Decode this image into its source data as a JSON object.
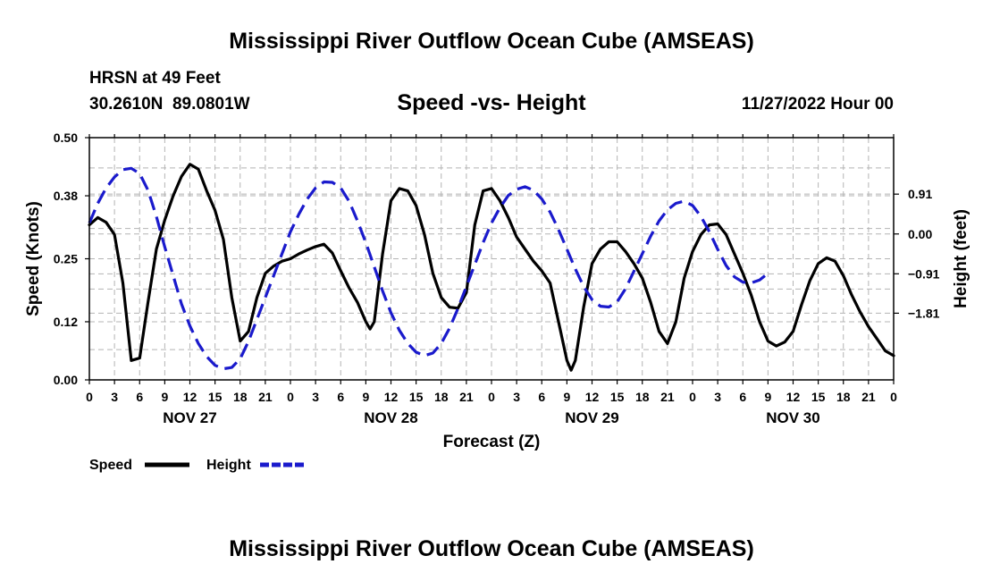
{
  "header": {
    "title": "Mississippi River Outflow Ocean Cube (AMSEAS)",
    "station": "HRSN at 49 Feet",
    "coords": "30.2610N  89.0801W",
    "plot_title": "Speed -vs- Height",
    "datetime": "11/27/2022 Hour 00"
  },
  "footer": {
    "title": "Mississippi River Outflow Ocean Cube (AMSEAS)"
  },
  "colors": {
    "speed": "#000000",
    "height": "#1a1acc",
    "grid": "#b4b4b4"
  },
  "chart_data": {
    "type": "line",
    "title": "Speed -vs- Height",
    "xlabel": "Forecast (Z)",
    "ylabel": "Speed (Knots)",
    "y2label": "Height (feet)",
    "xlim": [
      0,
      96
    ],
    "ylim": [
      0,
      0.5
    ],
    "y2lim": [
      -3.333,
      2.2
    ],
    "grid": true,
    "legend_position": "bottom-left",
    "x_tick_labels": [
      "0",
      "3",
      "6",
      "9",
      "12",
      "15",
      "18",
      "21",
      "0",
      "3",
      "6",
      "9",
      "12",
      "15",
      "18",
      "21",
      "0",
      "3",
      "6",
      "9",
      "12",
      "15",
      "18",
      "21",
      "0",
      "3",
      "6",
      "9",
      "12",
      "15",
      "18",
      "21",
      "0"
    ],
    "day_labels": [
      {
        "label": "NOV 27",
        "at_hour": 12
      },
      {
        "label": "NOV 28",
        "at_hour": 36
      },
      {
        "label": "NOV 29",
        "at_hour": 60
      },
      {
        "label": "NOV 30",
        "at_hour": 84
      }
    ],
    "y_ticks": [
      "0.00",
      "0.12",
      "0.25",
      "0.38",
      "0.50"
    ],
    "y2_ticks": [
      "0.91",
      "0.00",
      "−0.91",
      "−1.81"
    ],
    "y2_tick_values": [
      0.91,
      0.0,
      -0.91,
      -1.81
    ],
    "series": [
      {
        "name": "Speed",
        "axis": "left",
        "style": "solid",
        "points": [
          [
            0,
            0.32
          ],
          [
            1,
            0.335
          ],
          [
            2,
            0.325
          ],
          [
            3,
            0.3
          ],
          [
            4,
            0.2
          ],
          [
            5,
            0.04
          ],
          [
            6,
            0.045
          ],
          [
            7,
            0.16
          ],
          [
            8,
            0.27
          ],
          [
            9,
            0.33
          ],
          [
            10,
            0.38
          ],
          [
            11,
            0.42
          ],
          [
            12,
            0.445
          ],
          [
            13,
            0.435
          ],
          [
            14,
            0.39
          ],
          [
            15,
            0.35
          ],
          [
            16,
            0.29
          ],
          [
            17,
            0.17
          ],
          [
            18,
            0.08
          ],
          [
            19,
            0.1
          ],
          [
            20,
            0.17
          ],
          [
            21,
            0.22
          ],
          [
            22,
            0.235
          ],
          [
            23,
            0.245
          ],
          [
            24,
            0.25
          ],
          [
            25,
            0.26
          ],
          [
            26,
            0.268
          ],
          [
            27,
            0.275
          ],
          [
            28,
            0.28
          ],
          [
            29,
            0.262
          ],
          [
            30,
            0.225
          ],
          [
            31,
            0.19
          ],
          [
            32,
            0.16
          ],
          [
            33,
            0.12
          ],
          [
            33.5,
            0.105
          ],
          [
            34,
            0.12
          ],
          [
            35,
            0.26
          ],
          [
            36,
            0.37
          ],
          [
            37,
            0.395
          ],
          [
            38,
            0.39
          ],
          [
            39,
            0.36
          ],
          [
            40,
            0.3
          ],
          [
            41,
            0.22
          ],
          [
            42,
            0.17
          ],
          [
            43,
            0.15
          ],
          [
            44,
            0.148
          ],
          [
            45,
            0.18
          ],
          [
            46,
            0.32
          ],
          [
            47,
            0.39
          ],
          [
            48,
            0.395
          ],
          [
            49,
            0.37
          ],
          [
            50,
            0.335
          ],
          [
            51,
            0.295
          ],
          [
            52,
            0.27
          ],
          [
            53,
            0.245
          ],
          [
            54,
            0.225
          ],
          [
            55,
            0.2
          ],
          [
            56,
            0.12
          ],
          [
            57,
            0.04
          ],
          [
            57.5,
            0.02
          ],
          [
            58,
            0.04
          ],
          [
            59,
            0.15
          ],
          [
            60,
            0.24
          ],
          [
            61,
            0.27
          ],
          [
            62,
            0.285
          ],
          [
            63,
            0.285
          ],
          [
            64,
            0.265
          ],
          [
            65,
            0.24
          ],
          [
            66,
            0.21
          ],
          [
            67,
            0.16
          ],
          [
            68,
            0.1
          ],
          [
            69,
            0.075
          ],
          [
            70,
            0.12
          ],
          [
            71,
            0.21
          ],
          [
            72,
            0.265
          ],
          [
            73,
            0.3
          ],
          [
            74,
            0.32
          ],
          [
            75,
            0.322
          ],
          [
            76,
            0.3
          ],
          [
            77,
            0.26
          ],
          [
            78,
            0.22
          ],
          [
            79,
            0.175
          ],
          [
            80,
            0.12
          ],
          [
            81,
            0.08
          ],
          [
            82,
            0.07
          ],
          [
            83,
            0.078
          ],
          [
            84,
            0.1
          ],
          [
            85,
            0.155
          ],
          [
            86,
            0.205
          ],
          [
            87,
            0.24
          ],
          [
            88,
            0.252
          ],
          [
            89,
            0.245
          ],
          [
            90,
            0.215
          ],
          [
            91,
            0.175
          ],
          [
            92,
            0.14
          ],
          [
            93,
            0.11
          ],
          [
            94,
            0.085
          ],
          [
            95,
            0.06
          ],
          [
            96,
            0.05
          ]
        ]
      },
      {
        "name": "Height",
        "axis": "right",
        "style": "dashed",
        "points": [
          [
            0,
            0.25
          ],
          [
            1,
            0.7
          ],
          [
            2,
            1.05
          ],
          [
            3,
            1.3
          ],
          [
            4,
            1.47
          ],
          [
            5,
            1.5
          ],
          [
            6,
            1.38
          ],
          [
            7,
            1.0
          ],
          [
            8,
            0.4
          ],
          [
            9,
            -0.3
          ],
          [
            10,
            -0.95
          ],
          [
            11,
            -1.6
          ],
          [
            12,
            -2.1
          ],
          [
            13,
            -2.5
          ],
          [
            14,
            -2.8
          ],
          [
            15,
            -3.0
          ],
          [
            16,
            -3.08
          ],
          [
            17,
            -3.05
          ],
          [
            18,
            -2.85
          ],
          [
            19,
            -2.45
          ],
          [
            20,
            -1.95
          ],
          [
            21,
            -1.45
          ],
          [
            22,
            -0.95
          ],
          [
            23,
            -0.45
          ],
          [
            24,
            0.05
          ],
          [
            25,
            0.45
          ],
          [
            26,
            0.8
          ],
          [
            27,
            1.05
          ],
          [
            28,
            1.19
          ],
          [
            29,
            1.18
          ],
          [
            30,
            1.05
          ],
          [
            31,
            0.75
          ],
          [
            32,
            0.3
          ],
          [
            33,
            -0.2
          ],
          [
            34,
            -0.75
          ],
          [
            35,
            -1.3
          ],
          [
            36,
            -1.8
          ],
          [
            37,
            -2.2
          ],
          [
            38,
            -2.5
          ],
          [
            39,
            -2.7
          ],
          [
            40,
            -2.78
          ],
          [
            41,
            -2.72
          ],
          [
            42,
            -2.5
          ],
          [
            43,
            -2.15
          ],
          [
            44,
            -1.7
          ],
          [
            45,
            -1.2
          ],
          [
            46,
            -0.7
          ],
          [
            47,
            -0.2
          ],
          [
            48,
            0.25
          ],
          [
            49,
            0.6
          ],
          [
            50,
            0.88
          ],
          [
            51,
            1.02
          ],
          [
            52,
            1.08
          ],
          [
            53,
            1.0
          ],
          [
            54,
            0.8
          ],
          [
            55,
            0.5
          ],
          [
            56,
            0.1
          ],
          [
            57,
            -0.35
          ],
          [
            58,
            -0.8
          ],
          [
            59,
            -1.2
          ],
          [
            60,
            -1.5
          ],
          [
            61,
            -1.65
          ],
          [
            62,
            -1.67
          ],
          [
            63,
            -1.55
          ],
          [
            64,
            -1.25
          ],
          [
            65,
            -0.85
          ],
          [
            66,
            -0.45
          ],
          [
            67,
            -0.05
          ],
          [
            68,
            0.3
          ],
          [
            69,
            0.55
          ],
          [
            70,
            0.7
          ],
          [
            71,
            0.75
          ],
          [
            72,
            0.65
          ],
          [
            73,
            0.4
          ],
          [
            74,
            0.05
          ],
          [
            75,
            -0.35
          ],
          [
            76,
            -0.72
          ],
          [
            77,
            -0.98
          ],
          [
            78,
            -1.1
          ],
          [
            79,
            -1.12
          ],
          [
            80,
            -1.05
          ],
          [
            81,
            -0.9
          ]
        ]
      }
    ]
  },
  "legend": [
    {
      "name": "Speed",
      "color": "#000000",
      "style": "solid"
    },
    {
      "name": "Height",
      "color": "#1a1acc",
      "style": "dashed"
    }
  ]
}
